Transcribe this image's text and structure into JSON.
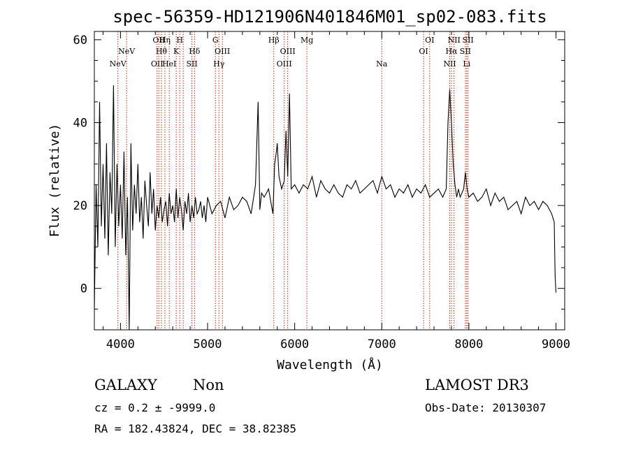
{
  "chart_data": {
    "type": "line",
    "title": "spec-56359-HD121906N401846M01_sp02-083.fits",
    "xlabel": "Wavelength (Å)",
    "ylabel": "Flux (relative)",
    "xlim": [
      3700,
      9100
    ],
    "ylim": [
      -10,
      62
    ],
    "x_ticks": [
      4000,
      5000,
      6000,
      7000,
      8000,
      9000
    ],
    "y_ticks": [
      0,
      20,
      40,
      60
    ],
    "grid": false,
    "line_color": "#000000",
    "marker_color": "#cc2200",
    "series": [
      {
        "x": [
          3700,
          3720,
          3740,
          3760,
          3780,
          3800,
          3820,
          3840,
          3860,
          3880,
          3900,
          3920,
          3940,
          3960,
          3980,
          4000,
          4020,
          4040,
          4060,
          4080,
          4100,
          4120,
          4140,
          4160,
          4180,
          4200,
          4220,
          4240,
          4260,
          4280,
          4300,
          4320,
          4340,
          4360,
          4380,
          4400,
          4420,
          4440,
          4460,
          4480,
          4500,
          4520,
          4540,
          4560,
          4580,
          4600,
          4620,
          4640,
          4660,
          4680,
          4700,
          4720,
          4740,
          4760,
          4780,
          4800,
          4820,
          4840,
          4860,
          4880,
          4900,
          4920,
          4940,
          4960,
          4980,
          5000,
          5050,
          5100,
          5150,
          5200,
          5250,
          5300,
          5350,
          5400,
          5450,
          5500,
          5550,
          5580,
          5600,
          5620,
          5650,
          5700,
          5750,
          5770,
          5790,
          5800,
          5820,
          5850,
          5880,
          5900,
          5920,
          5940,
          5960,
          6000,
          6050,
          6100,
          6150,
          6200,
          6250,
          6300,
          6350,
          6400,
          6450,
          6500,
          6550,
          6600,
          6650,
          6700,
          6750,
          6800,
          6850,
          6900,
          6950,
          7000,
          7050,
          7100,
          7150,
          7200,
          7250,
          7300,
          7350,
          7400,
          7450,
          7500,
          7550,
          7600,
          7650,
          7700,
          7740,
          7760,
          7780,
          7790,
          7800,
          7810,
          7820,
          7840,
          7860,
          7880,
          7900,
          7920,
          7940,
          7960,
          7980,
          8000,
          8050,
          8100,
          8150,
          8200,
          8250,
          8300,
          8350,
          8400,
          8450,
          8500,
          8550,
          8600,
          8650,
          8700,
          8750,
          8800,
          8850,
          8900,
          8950,
          8980,
          8990,
          9000
        ],
        "y": [
          -5,
          25,
          10,
          45,
          15,
          30,
          12,
          35,
          8,
          28,
          18,
          49,
          10,
          30,
          15,
          25,
          12,
          33,
          8,
          22,
          -10,
          35,
          14,
          25,
          18,
          30,
          16,
          22,
          12,
          26,
          20,
          15,
          28,
          18,
          24,
          14,
          20,
          17,
          22,
          16,
          19,
          21,
          15,
          23,
          18,
          20,
          16,
          24,
          17,
          22,
          19,
          14,
          21,
          18,
          23,
          16,
          20,
          17,
          22,
          18,
          19,
          21,
          17,
          20,
          16,
          22,
          18,
          20,
          21,
          17,
          22,
          19,
          20,
          22,
          21,
          18,
          25,
          45,
          19,
          23,
          22,
          24,
          18,
          30,
          33,
          35,
          27,
          24,
          26,
          38,
          27,
          47,
          24,
          25,
          23,
          25,
          24,
          27,
          22,
          26,
          24,
          23,
          25,
          23,
          22,
          25,
          24,
          26,
          23,
          24,
          25,
          26,
          23,
          27,
          24,
          25,
          22,
          24,
          23,
          25,
          22,
          24,
          23,
          25,
          22,
          23,
          24,
          22,
          24,
          40,
          48,
          44,
          40,
          35,
          30,
          25,
          22,
          24,
          22,
          23,
          24,
          28,
          24,
          22,
          23,
          21,
          22,
          24,
          20,
          23,
          21,
          22,
          19,
          20,
          21,
          18,
          22,
          20,
          21,
          19,
          21,
          20,
          18,
          16,
          3,
          -1
        ]
      }
    ],
    "line_markers": [
      {
        "x": 3970,
        "label": "NeV",
        "row": 2
      },
      {
        "x": 4070,
        "label": "NeV",
        "row": 1
      },
      {
        "x": 4420,
        "label": "OII",
        "row": 2
      },
      {
        "x": 4440,
        "label": "OII",
        "row": 0
      },
      {
        "x": 4470,
        "label": "Hθ",
        "row": 1
      },
      {
        "x": 4510,
        "label": "Hη",
        "row": 0
      },
      {
        "x": 4560,
        "label": "HeI",
        "row": 2
      },
      {
        "x": 4640,
        "label": "K",
        "row": 1
      },
      {
        "x": 4680,
        "label": "H",
        "row": 0
      },
      {
        "x": 4720,
        "label": "",
        "row": 0
      },
      {
        "x": 4820,
        "label": "SII",
        "row": 2
      },
      {
        "x": 4850,
        "label": "Hδ",
        "row": 1
      },
      {
        "x": 5090,
        "label": "G",
        "row": 0
      },
      {
        "x": 5130,
        "label": "Hγ",
        "row": 2
      },
      {
        "x": 5170,
        "label": "OIII",
        "row": 1
      },
      {
        "x": 5760,
        "label": "Hβ",
        "row": 0
      },
      {
        "x": 5880,
        "label": "OIII",
        "row": 2
      },
      {
        "x": 5920,
        "label": "OIII",
        "row": 1
      },
      {
        "x": 6140,
        "label": "Mg",
        "row": 0
      },
      {
        "x": 7000,
        "label": "Na",
        "row": 2
      },
      {
        "x": 7480,
        "label": "OI",
        "row": 1
      },
      {
        "x": 7550,
        "label": "OI",
        "row": 0
      },
      {
        "x": 7780,
        "label": "NII",
        "row": 2
      },
      {
        "x": 7800,
        "label": "Hα",
        "row": 1
      },
      {
        "x": 7830,
        "label": "NII",
        "row": 0
      },
      {
        "x": 7960,
        "label": "SII",
        "row": 1
      },
      {
        "x": 7975,
        "label": "Li",
        "row": 2
      },
      {
        "x": 7990,
        "label": "SII",
        "row": 0
      }
    ]
  },
  "footer": {
    "class_label": "GALAXY",
    "subclass_label": "Non",
    "survey_label": "LAMOST DR3",
    "cz_text": "cz = 0.2 ± -9999.0",
    "obs_date_text": "Obs-Date: 20130307",
    "coords_text": "RA = 182.43824, DEC =  38.82385"
  }
}
